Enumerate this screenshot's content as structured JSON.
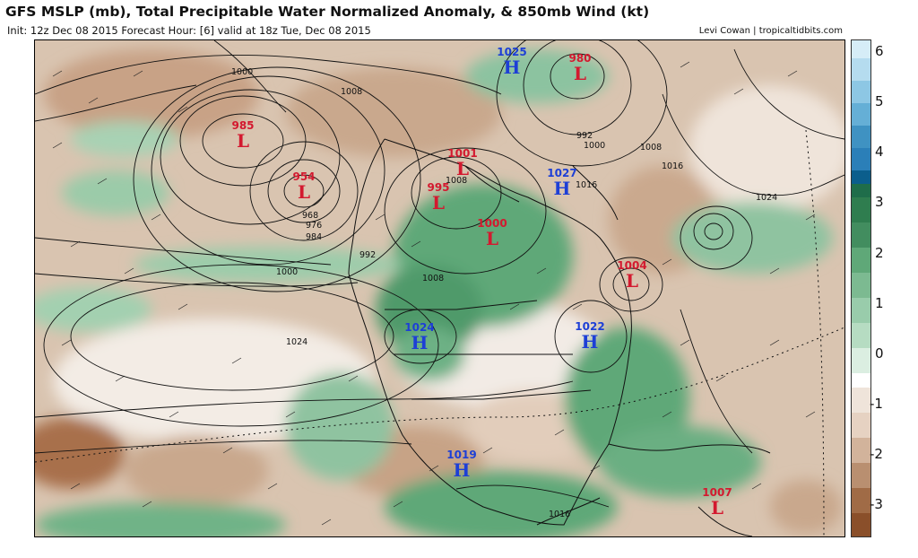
{
  "header": {
    "title": "GFS MSLP (mb), Total Precipitable Water Normalized Anomaly, & 850mb Wind (kt)",
    "subtitle": "Init: 12z Dec 08 2015   Forecast Hour: [6]   valid at 18z Tue, Dec 08 2015",
    "credit": "Levi Cowan | tropicaltidbits.com"
  },
  "colorbar": {
    "ticks": [
      "6",
      "5",
      "4",
      "3",
      "2",
      "1",
      "0",
      "-1",
      "-2",
      "-3"
    ],
    "colors": {
      "wet_light": "#cfe9f5",
      "wet_blue": "#2b7fb8",
      "wet_dark_blue": "#0b5e8c",
      "green_dark": "#2f7d4f",
      "green_mid": "#5fa878",
      "green_light": "#b6dcc2",
      "neutral": "#ffffff",
      "brown_light": "#e6d2c2",
      "brown_mid": "#b98f70",
      "brown_dark": "#8a4f2a"
    }
  },
  "pressure_systems": [
    {
      "type": "L",
      "value": "985"
    },
    {
      "type": "L",
      "value": "954"
    },
    {
      "type": "H",
      "value": "1025"
    },
    {
      "type": "L",
      "value": "980"
    },
    {
      "type": "L",
      "value": "1001"
    },
    {
      "type": "L",
      "value": "995"
    },
    {
      "type": "H",
      "value": "1027"
    },
    {
      "type": "L",
      "value": "1000"
    },
    {
      "type": "L",
      "value": "1004"
    },
    {
      "type": "H",
      "value": "1024"
    },
    {
      "type": "H",
      "value": "1022"
    },
    {
      "type": "H",
      "value": "1019"
    },
    {
      "type": "L",
      "value": "1007"
    }
  ],
  "isobar_labels": [
    "1000",
    "1008",
    "968",
    "976",
    "984",
    "992",
    "1000",
    "1008",
    "1024",
    "1008",
    "1016",
    "1024",
    "992",
    "1000",
    "1016",
    "1008",
    "1016"
  ]
}
